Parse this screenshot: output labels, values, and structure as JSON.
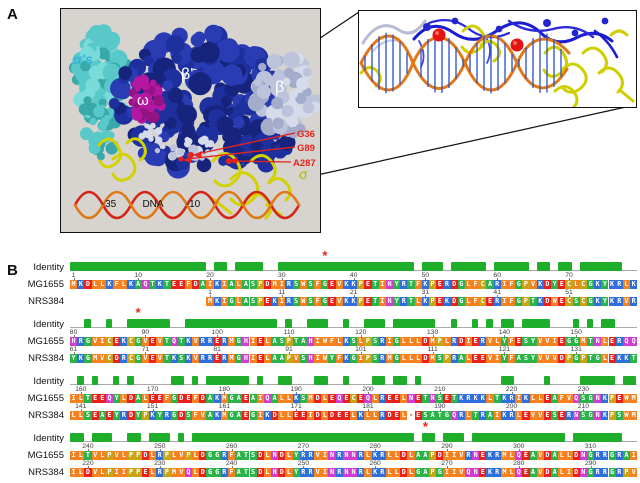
{
  "panel_a": {
    "label": "A",
    "subunit_labels": {
      "alphas": "α's",
      "beta_prime": "β'",
      "beta": "β",
      "omega": "ω",
      "sigma": "σ"
    },
    "residue_annotations": [
      "G36",
      "G89",
      "A287"
    ],
    "dna_labels": {
      "minus35": "-35",
      "dna": "DNA",
      "minus10": "-10"
    },
    "colors": {
      "box_bg": "#d7d3ce",
      "navy": "#1e2f9e",
      "navy_dark": "#16247e",
      "navy_light": "#2a3cb4",
      "cyan": "#58c8c8",
      "cyan_dark": "#38a8a8",
      "cyan_light": "#7adbdb",
      "grey_blue": "#bcc3da",
      "grey_blue_dark": "#a3accb",
      "grey_blue_light": "#d6dbeb",
      "magenta": "#b518a0",
      "magenta_dark": "#951283",
      "yellow": "#d2d200",
      "dna_red": "#d42414",
      "dna_orange": "#e07818",
      "annotation_red": "#e8231a",
      "alpha_label": "#38b4d8",
      "sigma_label": "#b4b400",
      "inset_blue": "#1c1cd0",
      "red_sphere": "#e61212"
    }
  },
  "panel_b": {
    "label": "B",
    "row_labels": {
      "identity": "Identity",
      "seq1": "MG1655",
      "seq2": "NRS384"
    },
    "asterisk": "*",
    "identity_color": "#1fae2a",
    "aa_colors": {
      "KR": "#2e6fdb",
      "DE": "#e8211a",
      "LIVMFW": "#f5821e",
      "AGSTY": "#2cb34a",
      "NQH": "#cf3ecf",
      "CP": "#c9a516"
    },
    "blocks": [
      {
        "mg_seq": "MKDLLKFLKAQTKTEEFDAIKIALASPDMIRSWSFGEVKKPETINYRTFKPERDGLFCARIFGPVKDYECLCGKYKRLK",
        "nrs_seq": "                   MKIGLASPEKIRSWSFGEVKKPETINYRTLKPEKDGLFCERIFGPTKDWECSCGKYKRVR",
        "mg_ticks": [
          [
            1,
            "1"
          ],
          [
            10,
            "10"
          ],
          [
            20,
            "20"
          ],
          [
            30,
            "30"
          ],
          [
            40,
            "40"
          ],
          [
            50,
            "50"
          ],
          [
            60,
            "60"
          ],
          [
            70,
            "70"
          ]
        ],
        "nrs_ticks": [
          [
            20,
            "1"
          ],
          [
            30,
            "11"
          ],
          [
            40,
            "21"
          ],
          [
            50,
            "31"
          ],
          [
            60,
            "41"
          ],
          [
            70,
            "51"
          ]
        ],
        "asterisk_col": 36
      },
      {
        "mg_seq": "HRGVICEKCGVEVTQTKVRRERMGHIELASPTAHIWFLKSLPSRIGLLLDMPLRDIERVLYFESYVVIEGGMTNLERQQ",
        "nrs_seq": "YKGMVCDRCGVEVTKSKVRRERMGHIELAAPVSHIWYFKGIPSRMGLLLDMSPRALEEVIYFASYVVVDPGPTGLEKKT",
        "mg_ticks": [
          [
            1,
            "80"
          ],
          [
            11,
            "90"
          ],
          [
            21,
            "100"
          ],
          [
            31,
            "110"
          ],
          [
            41,
            "120"
          ],
          [
            51,
            "130"
          ],
          [
            61,
            "140"
          ],
          [
            71,
            "150"
          ]
        ],
        "nrs_ticks": [
          [
            1,
            "61"
          ],
          [
            11,
            "71"
          ],
          [
            21,
            "81"
          ],
          [
            31,
            "91"
          ],
          [
            41,
            "101"
          ],
          [
            51,
            "111"
          ],
          [
            61,
            "121"
          ],
          [
            71,
            "131"
          ]
        ],
        "asterisk_col": 10
      },
      {
        "mg_seq": "ILTEEQYLDALEEFGDEFDAKMGAEAIQALLKSMDLEQECEQLREELNETNSETKRKKLTKRIKLLEAFVQSGNKPEWM",
        "nrs_seq": "LLSEAEYRDYPKYRGDSFVAKMGAEGIKDLLEEIDLDEELKLLRDEL-ESATGQRLTRAIKRLEVVESERNSGNKPSWM",
        "mg_ticks": [
          [
            2,
            "160"
          ],
          [
            12,
            "170"
          ],
          [
            22,
            "180"
          ],
          [
            32,
            "190"
          ],
          [
            42,
            "200"
          ],
          [
            52,
            "210"
          ],
          [
            62,
            "220"
          ],
          [
            72,
            "230"
          ]
        ],
        "nrs_ticks": [
          [
            2,
            "141"
          ],
          [
            12,
            "151"
          ],
          [
            22,
            "161"
          ],
          [
            32,
            "171"
          ],
          [
            42,
            "181"
          ],
          [
            52,
            "190"
          ],
          [
            62,
            "200"
          ],
          [
            72,
            "210"
          ]
        ],
        "asterisk_col": null
      },
      {
        "mg_seq": "ILTVLPVLPPDLRPLVPLDGGRFATSDLNDLYRRVINRNNRLKRLLDLAAPDIIVRNEKRMLQEAVDALLDNGRRGRAI",
        "nrs_seq": "ILDVLPIIPPELRPMVQLDGGRFATSDLNDLYRRVINRNNRLKRLLDLGAPGIIVQNEKRMLQEAVDALIDNGRRGRPV",
        "mg_ticks": [
          [
            3,
            "240"
          ],
          [
            13,
            "250"
          ],
          [
            23,
            "260"
          ],
          [
            33,
            "270"
          ],
          [
            43,
            "280"
          ],
          [
            53,
            "290"
          ],
          [
            63,
            "300"
          ],
          [
            73,
            "310"
          ]
        ],
        "nrs_ticks": [
          [
            3,
            "220"
          ],
          [
            13,
            "230"
          ],
          [
            23,
            "240"
          ],
          [
            33,
            "250"
          ],
          [
            43,
            "260"
          ],
          [
            53,
            "270"
          ],
          [
            63,
            "280"
          ],
          [
            73,
            "290"
          ]
        ],
        "asterisk_col": 50
      }
    ]
  }
}
